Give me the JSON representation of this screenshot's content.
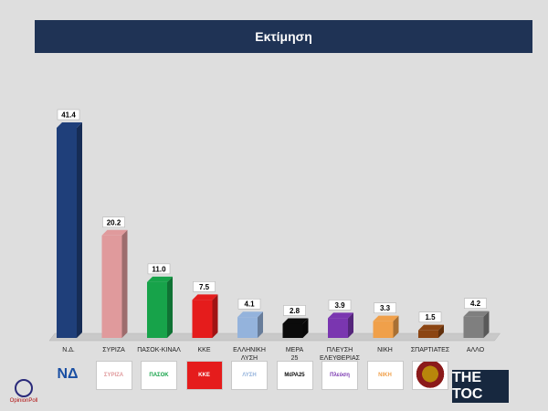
{
  "title": "Εκτίμηση",
  "chart_data": {
    "type": "bar",
    "title": "Εκτίμηση",
    "categories": [
      "Ν.Δ.",
      "ΣΥΡΙΖΑ",
      "ΠΑΣΟΚ-ΚΙΝΑΛ",
      "ΚΚΕ",
      "ΕΛΛΗΝΙΚΗ ΛΥΣΗ",
      "ΜΕΡΑ 25",
      "ΠΛΕΥΣΗ ΕΛΕΥΘΕΡΙΑΣ",
      "ΝΙΚΗ",
      "ΣΠΑΡΤΙΑΤΕΣ",
      "ΑΛΛΟ"
    ],
    "values": [
      41.4,
      20.2,
      11.0,
      7.5,
      4.1,
      2.8,
      3.9,
      3.3,
      1.5,
      4.2
    ],
    "labels": [
      "41.4",
      "20.2",
      "11.0",
      "7.5",
      "4.1",
      "2.8",
      "3.9",
      "3.3",
      "1.5",
      "4.2"
    ],
    "colors": [
      "#1f3f7a",
      "#e09a9c",
      "#17a34a",
      "#e51c1c",
      "#94b3dc",
      "#0b0b0b",
      "#7a36b0",
      "#f0a04a",
      "#8b4513",
      "#7f7f7f"
    ],
    "ylim": [
      0,
      45
    ],
    "grid": false,
    "legend": "none"
  },
  "logos": [
    {
      "text": "ΝΔ",
      "icon": "nd-logo-icon"
    },
    {
      "text": "ΣΥΡΙΖΑ",
      "icon": "syriza-logo-icon"
    },
    {
      "text": "ΠΑΣΟΚ",
      "icon": "pasok-logo-icon"
    },
    {
      "text": "ΚΚΕ",
      "icon": "kke-logo-icon"
    },
    {
      "text": "ΛΥΣΗ",
      "icon": "elliniki-lysi-logo-icon"
    },
    {
      "text": "ΜέΡΑ25",
      "icon": "mera25-logo-icon"
    },
    {
      "text": "Πλεύση",
      "icon": "plefsi-logo-icon"
    },
    {
      "text": "ΝΙΚΗ",
      "icon": "niki-logo-icon"
    },
    {
      "text": "",
      "icon": "spartiates-logo-icon"
    }
  ],
  "pollster": "OpinionPoll",
  "brand": "THE TOC"
}
